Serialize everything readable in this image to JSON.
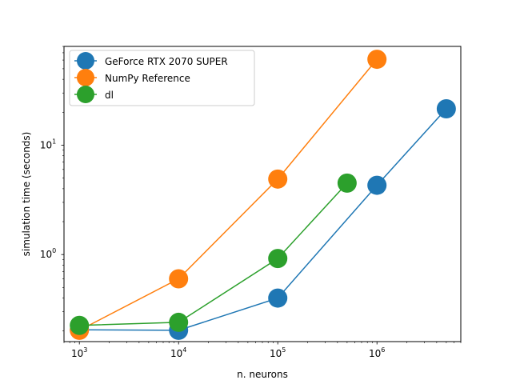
{
  "chart_data": {
    "type": "line",
    "title": "",
    "xlabel": "n. neurons",
    "ylabel": "simulation time (seconds)",
    "xscale": "log",
    "yscale": "log",
    "xlim": [
      700,
      7000000
    ],
    "ylim": [
      0.16,
      80
    ],
    "x_ticks": [
      {
        "value": 1000,
        "base": "10",
        "exp": "3"
      },
      {
        "value": 10000,
        "base": "10",
        "exp": "4"
      },
      {
        "value": 100000,
        "base": "10",
        "exp": "5"
      },
      {
        "value": 1000000,
        "base": "10",
        "exp": "6"
      }
    ],
    "y_ticks": [
      {
        "value": 1,
        "base": "10",
        "exp": "0"
      },
      {
        "value": 10,
        "base": "10",
        "exp": "1"
      }
    ],
    "grid": false,
    "legend_position": "top-left",
    "series": [
      {
        "name": "GeForce RTX 2070 SUPER",
        "color": "#1f77b4",
        "x": [
          1000,
          10000,
          100000,
          1000000,
          5000000
        ],
        "y": [
          0.205,
          0.203,
          0.4,
          4.3,
          21.5
        ]
      },
      {
        "name": "NumPy Reference",
        "color": "#ff7f0e",
        "x": [
          1000,
          10000,
          100000,
          1000000
        ],
        "y": [
          0.203,
          0.6,
          4.9,
          61
        ]
      },
      {
        "name": "dl",
        "color": "#2ca02c",
        "x": [
          1000,
          10000,
          100000,
          500000
        ],
        "y": [
          0.225,
          0.24,
          0.92,
          4.5
        ]
      }
    ]
  }
}
